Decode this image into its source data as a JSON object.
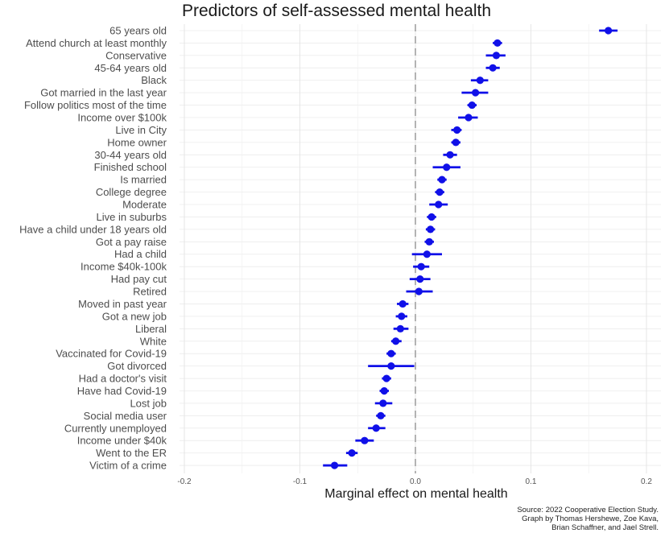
{
  "chart_data": {
    "type": "scatter",
    "title": "Predictors of self-assessed mental health",
    "xlabel": "Marginal effect on mental health",
    "ylabel": "",
    "xlim": [
      -0.2,
      0.2
    ],
    "x_ticks": [
      -0.2,
      -0.1,
      0.0,
      0.1,
      0.2
    ],
    "x_tick_labels": [
      "-0.2",
      "-0.1",
      "0.0",
      "0.1",
      "0.2"
    ],
    "reference_line": 0.0,
    "grid": true,
    "marker_color": "#1010e8",
    "reference_line_color": "#b3b3b3",
    "predictors": [
      {
        "label": "65 years old",
        "estimate": 0.167,
        "low": 0.159,
        "high": 0.175
      },
      {
        "label": "Attend church at least monthly",
        "estimate": 0.071,
        "low": 0.067,
        "high": 0.075
      },
      {
        "label": "Conservative",
        "estimate": 0.07,
        "low": 0.061,
        "high": 0.078
      },
      {
        "label": "45-64 years old",
        "estimate": 0.067,
        "low": 0.061,
        "high": 0.073
      },
      {
        "label": "Black",
        "estimate": 0.056,
        "low": 0.048,
        "high": 0.063
      },
      {
        "label": "Got married in the last year",
        "estimate": 0.052,
        "low": 0.04,
        "high": 0.063
      },
      {
        "label": "Follow politics most of the time",
        "estimate": 0.049,
        "low": 0.045,
        "high": 0.053
      },
      {
        "label": "Income over $100k",
        "estimate": 0.046,
        "low": 0.037,
        "high": 0.054
      },
      {
        "label": "Live in City",
        "estimate": 0.036,
        "low": 0.031,
        "high": 0.04
      },
      {
        "label": "Home owner",
        "estimate": 0.035,
        "low": 0.031,
        "high": 0.039
      },
      {
        "label": "30-44 years old",
        "estimate": 0.03,
        "low": 0.024,
        "high": 0.036
      },
      {
        "label": "Finished school",
        "estimate": 0.027,
        "low": 0.015,
        "high": 0.039
      },
      {
        "label": "Is married",
        "estimate": 0.023,
        "low": 0.019,
        "high": 0.027
      },
      {
        "label": "College degree",
        "estimate": 0.021,
        "low": 0.017,
        "high": 0.025
      },
      {
        "label": "Moderate",
        "estimate": 0.02,
        "low": 0.012,
        "high": 0.028
      },
      {
        "label": "Live in suburbs",
        "estimate": 0.014,
        "low": 0.01,
        "high": 0.018
      },
      {
        "label": "Have a child under 18 years old",
        "estimate": 0.013,
        "low": 0.009,
        "high": 0.017
      },
      {
        "label": "Got a pay raise",
        "estimate": 0.012,
        "low": 0.008,
        "high": 0.016
      },
      {
        "label": "Had a child",
        "estimate": 0.01,
        "low": -0.003,
        "high": 0.023
      },
      {
        "label": "Income $40k-100k",
        "estimate": 0.005,
        "low": -0.002,
        "high": 0.012
      },
      {
        "label": "Had pay cut",
        "estimate": 0.004,
        "low": -0.005,
        "high": 0.013
      },
      {
        "label": "Retired",
        "estimate": 0.003,
        "low": -0.008,
        "high": 0.015
      },
      {
        "label": "Moved in past year",
        "estimate": -0.011,
        "low": -0.016,
        "high": -0.006
      },
      {
        "label": "Got a new job",
        "estimate": -0.012,
        "low": -0.017,
        "high": -0.007
      },
      {
        "label": "Liberal",
        "estimate": -0.013,
        "low": -0.019,
        "high": -0.006
      },
      {
        "label": "White",
        "estimate": -0.017,
        "low": -0.021,
        "high": -0.012
      },
      {
        "label": "Vaccinated for Covid-19",
        "estimate": -0.021,
        "low": -0.025,
        "high": -0.017
      },
      {
        "label": "Got divorced",
        "estimate": -0.021,
        "low": -0.041,
        "high": -0.001
      },
      {
        "label": "Had a doctor's visit",
        "estimate": -0.025,
        "low": -0.029,
        "high": -0.021
      },
      {
        "label": "Have had Covid-19",
        "estimate": -0.027,
        "low": -0.031,
        "high": -0.023
      },
      {
        "label": "Lost job",
        "estimate": -0.028,
        "low": -0.035,
        "high": -0.02
      },
      {
        "label": "Social media user",
        "estimate": -0.03,
        "low": -0.034,
        "high": -0.026
      },
      {
        "label": "Currently unemployed",
        "estimate": -0.034,
        "low": -0.041,
        "high": -0.026
      },
      {
        "label": "Income under $40k",
        "estimate": -0.044,
        "low": -0.052,
        "high": -0.036
      },
      {
        "label": "Went to the ER",
        "estimate": -0.055,
        "low": -0.06,
        "high": -0.05
      },
      {
        "label": "Victim of a crime",
        "estimate": -0.07,
        "low": -0.08,
        "high": -0.059
      }
    ],
    "source_lines": [
      "Source: 2022 Cooperative Election Study.",
      "Graph by Thomas Hershewe, Zoe Kava,",
      "Brian Schaffner, and Jael Strell."
    ]
  }
}
